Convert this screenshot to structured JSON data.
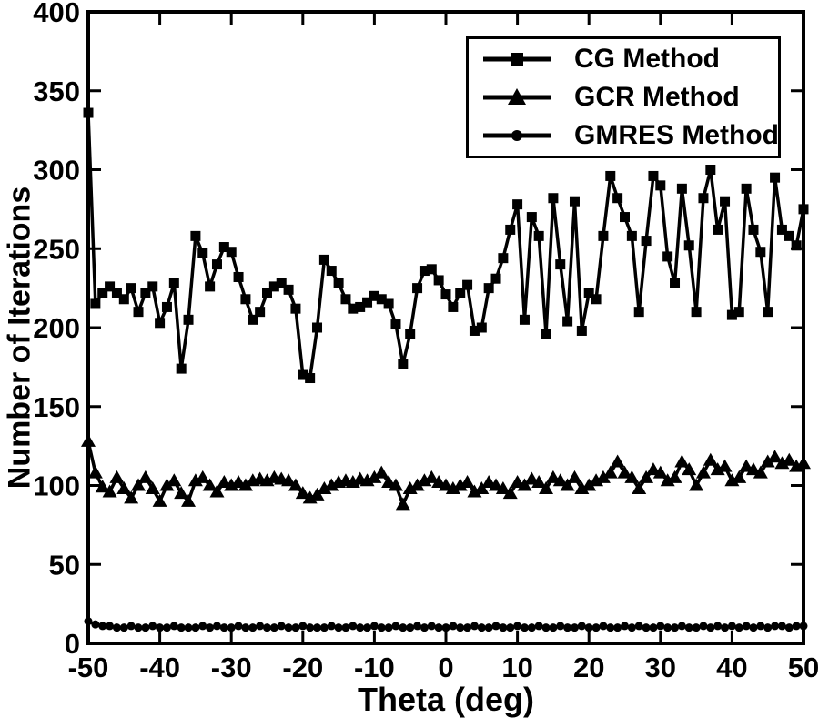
{
  "figure": {
    "background": "#ffffff",
    "frame_color": "#000000",
    "series_color": "#000000"
  },
  "legend": {
    "entries": [
      {
        "label": "CG Method",
        "marker": "square"
      },
      {
        "label": "GCR Method",
        "marker": "triangle"
      },
      {
        "label": "GMRES Method",
        "marker": "circle"
      }
    ]
  },
  "chart_data": {
    "type": "line",
    "title": "",
    "xlabel": "Theta (deg)",
    "ylabel": "Number of Iterations",
    "xlim": [
      -50,
      50
    ],
    "ylim": [
      0,
      400
    ],
    "x_ticks": [
      -50,
      -40,
      -30,
      -20,
      -10,
      0,
      10,
      20,
      30,
      40,
      50
    ],
    "y_ticks": [
      0,
      50,
      100,
      150,
      200,
      250,
      300,
      350,
      400
    ],
    "grid": false,
    "legend_position": "upper right",
    "x": [
      -50,
      -49,
      -48,
      -47,
      -46,
      -45,
      -44,
      -43,
      -42,
      -41,
      -40,
      -39,
      -38,
      -37,
      -36,
      -35,
      -34,
      -33,
      -32,
      -31,
      -30,
      -29,
      -28,
      -27,
      -26,
      -25,
      -24,
      -23,
      -22,
      -21,
      -20,
      -19,
      -18,
      -17,
      -16,
      -15,
      -14,
      -13,
      -12,
      -11,
      -10,
      -9,
      -8,
      -7,
      -6,
      -5,
      -4,
      -3,
      -2,
      -1,
      0,
      1,
      2,
      3,
      4,
      5,
      6,
      7,
      8,
      9,
      10,
      11,
      12,
      13,
      14,
      15,
      16,
      17,
      18,
      19,
      20,
      21,
      22,
      23,
      24,
      25,
      26,
      27,
      28,
      29,
      30,
      31,
      32,
      33,
      34,
      35,
      36,
      37,
      38,
      39,
      40,
      41,
      42,
      43,
      44,
      45,
      46,
      47,
      48,
      49,
      50
    ],
    "series": [
      {
        "name": "CG Method",
        "marker": "square",
        "color": "#000000",
        "values": [
          336,
          215,
          222,
          226,
          222,
          218,
          225,
          210,
          222,
          226,
          203,
          213,
          228,
          174,
          205,
          258,
          247,
          226,
          240,
          251,
          248,
          232,
          218,
          205,
          210,
          222,
          226,
          228,
          224,
          212,
          170,
          168,
          200,
          243,
          236,
          228,
          218,
          212,
          213,
          216,
          220,
          218,
          215,
          202,
          177,
          196,
          225,
          236,
          237,
          230,
          221,
          213,
          222,
          227,
          198,
          200,
          225,
          231,
          244,
          262,
          278,
          205,
          270,
          258,
          196,
          282,
          240,
          204,
          280,
          198,
          222,
          218,
          258,
          296,
          282,
          270,
          258,
          210,
          255,
          296,
          290,
          245,
          228,
          288,
          252,
          210,
          282,
          300,
          262,
          280,
          208,
          210,
          288,
          262,
          248,
          210,
          295,
          262,
          258,
          252,
          275
        ]
      },
      {
        "name": "GCR Method",
        "marker": "triangle",
        "color": "#000000",
        "values": [
          128,
          108,
          99,
          96,
          105,
          98,
          92,
          100,
          105,
          98,
          90,
          100,
          103,
          95,
          90,
          103,
          105,
          100,
          96,
          102,
          100,
          102,
          100,
          103,
          104,
          103,
          105,
          104,
          103,
          100,
          95,
          92,
          94,
          98,
          100,
          102,
          103,
          102,
          104,
          103,
          105,
          108,
          102,
          100,
          88,
          98,
          100,
          103,
          105,
          102,
          100,
          98,
          100,
          102,
          96,
          98,
          102,
          100,
          98,
          95,
          102,
          100,
          104,
          102,
          98,
          105,
          103,
          100,
          105,
          98,
          100,
          103,
          105,
          108,
          115,
          108,
          105,
          98,
          105,
          110,
          108,
          103,
          105,
          115,
          110,
          100,
          108,
          116,
          110,
          112,
          103,
          105,
          112,
          110,
          108,
          115,
          118,
          114,
          116,
          112,
          114
        ]
      },
      {
        "name": "GMRES Method",
        "marker": "circle",
        "color": "#000000",
        "values": [
          14,
          12,
          11,
          11,
          10,
          10,
          11,
          10,
          10,
          11,
          10,
          10,
          11,
          10,
          10,
          10,
          11,
          10,
          11,
          10,
          10,
          11,
          10,
          10,
          11,
          10,
          10,
          11,
          10,
          10,
          11,
          10,
          10,
          10,
          11,
          10,
          10,
          11,
          10,
          10,
          11,
          10,
          10,
          11,
          10,
          10,
          11,
          10,
          11,
          10,
          10,
          11,
          10,
          10,
          11,
          10,
          10,
          11,
          10,
          10,
          11,
          10,
          10,
          11,
          10,
          10,
          11,
          10,
          10,
          11,
          10,
          10,
          11,
          10,
          10,
          11,
          10,
          11,
          10,
          10,
          11,
          10,
          10,
          11,
          10,
          10,
          11,
          10,
          11,
          10,
          11,
          10,
          11,
          10,
          11,
          10,
          11,
          11,
          10,
          11,
          11
        ]
      }
    ]
  }
}
